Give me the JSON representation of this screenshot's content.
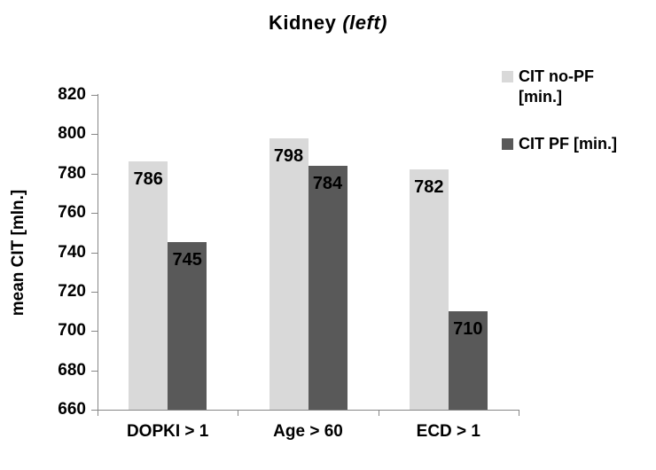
{
  "title": {
    "main": "Kidney",
    "suffix": "(left)"
  },
  "chart_data": {
    "type": "bar",
    "title": "Kidney (left)",
    "categories": [
      "DOPKI > 1",
      "Age > 60",
      "ECD > 1"
    ],
    "series": [
      {
        "name": "CIT no-PF [min.]",
        "label_lines": [
          "CIT no-PF",
          "[min.]"
        ],
        "color": "#d9d9d9",
        "values": [
          786,
          798,
          782
        ]
      },
      {
        "name": "CIT PF [min.]",
        "label_lines": [
          "CIT PF [min.]"
        ],
        "color": "#595959",
        "values": [
          745,
          784,
          710
        ]
      }
    ],
    "xlabel": "",
    "ylabel": "mean CIT [mln.]",
    "ylim": [
      660,
      820
    ],
    "ytick_step": 20,
    "yticks": [
      660,
      680,
      700,
      720,
      740,
      760,
      780,
      800,
      820
    ],
    "grid": false,
    "legend_position": "right",
    "bar_labels": true
  },
  "colors": {
    "axis": "#878787",
    "text": "#000000",
    "background": "#ffffff",
    "series_light": "#d9d9d9",
    "series_dark": "#595959"
  }
}
